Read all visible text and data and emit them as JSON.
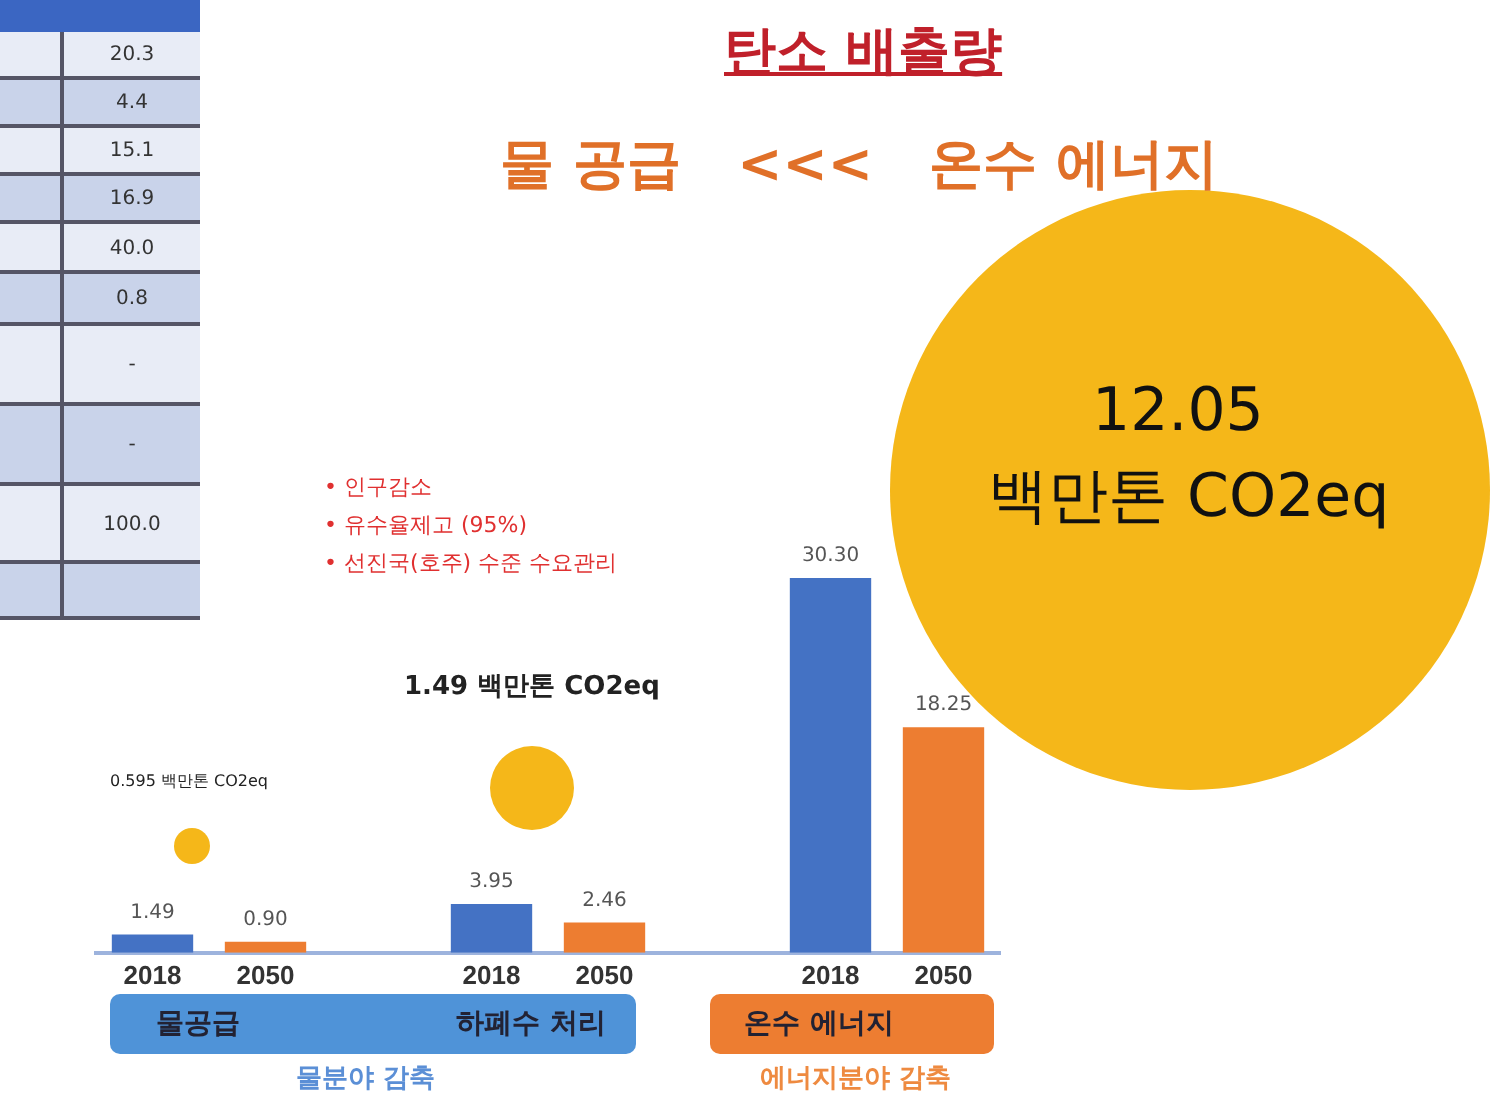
{
  "chart_data": [
    {
      "type": "bar",
      "title": "탄소 배출량",
      "subtitle": "물 공급   <<<   온수 에너지",
      "categories": [
        "2018",
        "2050",
        null,
        "2018",
        "2050",
        null,
        "2018",
        "2050"
      ],
      "values": [
        1.49,
        0.9,
        null,
        3.95,
        2.46,
        null,
        30.3,
        18.25
      ],
      "value_labels": [
        "1.49",
        "0.90",
        null,
        "3.95",
        "2.46",
        null,
        "30.30",
        "18.25"
      ],
      "colors": [
        "#4472c4",
        "#ed7d31",
        "#ffffff",
        "#4472c4",
        "#ed7d31",
        "#ffffff",
        "#4472c4",
        "#ed7d31"
      ],
      "tick_labels": "x",
      "grid": false,
      "legend": false,
      "annotations": [
        "•   인구감소",
        "•   유수율제고 (95%)",
        "•   선진국(호주) 수준 수요관리",
        "물공급",
        "하폐수 처리",
        "온수 에너지",
        "물분야 감축",
        "에너지분야 감축"
      ]
    },
    {
      "type": "other",
      "annotations": [
        "0.595 백만톤 CO2eq",
        "1.49 백만톤 CO2eq",
        "12.05",
        "백만톤 CO2eq"
      ]
    },
    {
      "type": "other",
      "annotations": [
        "20.3",
        "4.4",
        "15.1",
        "16.9",
        "40.0",
        "0.8",
        "-",
        "-",
        "100.0"
      ]
    }
  ]
}
